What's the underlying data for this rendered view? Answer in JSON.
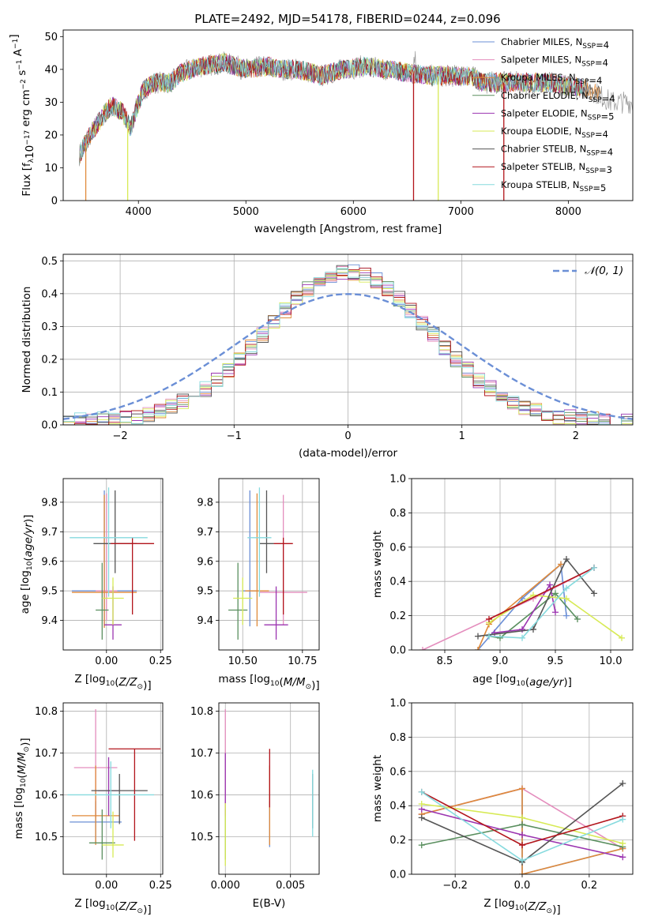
{
  "title": "PLATE=2492, MJD=54178, FIBERID=0244, z=0.096",
  "colors": {
    "chabrier_miles": "#6b8fd6",
    "salpeter_miles": "#e48dbd",
    "kroupa_miles": "#e08a3a",
    "chabrier_elodie": "#5a8f5f",
    "salpeter_elodie": "#9b34b0",
    "kroupa_elodie": "#d7ea55",
    "chabrier_stelib": "#555555",
    "salpeter_stelib": "#b2141b",
    "kroupa_stelib": "#86dade",
    "normal": "#6b8fd6"
  },
  "chart_data": [
    {
      "id": "spectrum",
      "type": "line",
      "title": "PLATE=2492, MJD=54178, FIBERID=0244, z=0.096",
      "xlabel": "wavelength [Angstrom, rest frame]",
      "ylabel": "Flux [f_λ 10^-17 erg cm^-2 s^-1 A^-1]",
      "xlim": [
        3300,
        8600
      ],
      "ylim": [
        0,
        52
      ],
      "xticks": [
        4000,
        5000,
        6000,
        7000,
        8000
      ],
      "yticks": [
        0,
        10,
        20,
        30,
        40,
        50
      ],
      "grid": false,
      "legend_placement": "top-right",
      "data_continuum": [
        [
          3450,
          14
        ],
        [
          3550,
          20
        ],
        [
          3650,
          25
        ],
        [
          3750,
          29
        ],
        [
          3850,
          27
        ],
        [
          3930,
          22
        ],
        [
          3970,
          27
        ],
        [
          4050,
          34
        ],
        [
          4150,
          36
        ],
        [
          4300,
          36
        ],
        [
          4400,
          39
        ],
        [
          4600,
          41
        ],
        [
          4800,
          42
        ],
        [
          5000,
          40
        ],
        [
          5200,
          41
        ],
        [
          5300,
          40
        ],
        [
          5500,
          40
        ],
        [
          5700,
          38
        ],
        [
          5900,
          40
        ],
        [
          6100,
          41
        ],
        [
          6300,
          40
        ],
        [
          6500,
          39
        ],
        [
          6700,
          38
        ],
        [
          6900,
          38
        ],
        [
          7100,
          38
        ],
        [
          7200,
          36
        ],
        [
          7400,
          36
        ],
        [
          7600,
          36
        ],
        [
          7800,
          36
        ],
        [
          8000,
          35
        ],
        [
          8200,
          34
        ],
        [
          8400,
          30
        ],
        [
          8600,
          30
        ]
      ],
      "series": [
        {
          "name": "Chabrier MILES, N_SSP=4"
        },
        {
          "name": "Salpeter MILES, N_SSP=4"
        },
        {
          "name": "Kroupa MILES, N_SSP=4"
        },
        {
          "name": "Chabrier ELODIE, N_SSP=4"
        },
        {
          "name": "Salpeter ELODIE, N_SSP=5"
        },
        {
          "name": "Kroupa ELODIE, N_SSP=4"
        },
        {
          "name": "Chabrier STELIB, N_SSP=4"
        },
        {
          "name": "Salpeter STELIB, N_SSP=3"
        },
        {
          "name": "Kroupa STELIB, N_SSP=5"
        }
      ],
      "drops": [
        {
          "series": 2,
          "x": 3510
        },
        {
          "series": 5,
          "x": 3900
        },
        {
          "series": 5,
          "x": 6790
        },
        {
          "series": 7,
          "x": 6560
        },
        {
          "series": 7,
          "x": 7400
        }
      ]
    },
    {
      "id": "residuals",
      "type": "line",
      "xlabel": "(data-model)/error",
      "ylabel": "Normed distribution",
      "xlim": [
        -2.5,
        2.5
      ],
      "ylim": [
        0,
        0.52
      ],
      "xticks": [
        -2,
        -1,
        0,
        1,
        2
      ],
      "yticks": [
        0.0,
        0.1,
        0.2,
        0.3,
        0.4,
        0.5
      ],
      "grid": true,
      "legend_placement": "top-right",
      "legend": "N(0,1)",
      "bin_width": 0.1
    },
    {
      "id": "age_vs_z",
      "type": "scatter",
      "xlabel": "Z [log10(Z/Z⊙)]",
      "ylabel": "age [log10(age/yr)]",
      "xlim": [
        -0.2,
        0.26
      ],
      "ylim": [
        9.3,
        9.88
      ],
      "xticks": [
        0.0,
        0.25
      ],
      "yticks": [
        9.4,
        9.5,
        9.6,
        9.7,
        9.8
      ],
      "grid": true,
      "points": [
        {
          "series": 0,
          "x": -0.01,
          "xerr": 0.15,
          "y": 9.5,
          "yerr": [
            0.12,
            0.34
          ]
        },
        {
          "series": 1,
          "x": 0.0,
          "xerr": 0.05,
          "y": 9.5,
          "yerr": [
            0.1,
            0.33
          ]
        },
        {
          "series": 2,
          "x": -0.01,
          "xerr": 0.15,
          "y": 9.495,
          "yerr": [
            0.12,
            0.33
          ]
        },
        {
          "series": 3,
          "x": -0.02,
          "xerr": 0.03,
          "y": 9.435,
          "yerr": [
            0.1,
            0.16
          ]
        },
        {
          "series": 4,
          "x": 0.03,
          "xerr": 0.04,
          "y": 9.385,
          "yerr": [
            0.05,
            0.13
          ]
        },
        {
          "series": 5,
          "x": 0.03,
          "xerr": 0.05,
          "y": 9.475,
          "yerr": [
            0.09,
            0.07
          ]
        },
        {
          "series": 6,
          "x": 0.04,
          "xerr": 0.1,
          "y": 9.66,
          "yerr": [
            0.1,
            0.18
          ]
        },
        {
          "series": 7,
          "x": 0.12,
          "xerr": 0.1,
          "y": 9.66,
          "yerr": [
            0.24,
            0.02
          ]
        },
        {
          "series": 8,
          "x": 0.01,
          "xerr": 0.18,
          "y": 9.68,
          "yerr": [
            0.2,
            0.17
          ]
        }
      ]
    },
    {
      "id": "age_vs_mass",
      "type": "scatter",
      "xlabel": "mass [log10(M/M⊙)]",
      "ylabel": "",
      "xlim": [
        10.4,
        10.82
      ],
      "ylim": [
        9.3,
        9.88
      ],
      "xticks": [
        10.5,
        10.75
      ],
      "yticks": [
        9.4,
        9.5,
        9.6,
        9.7,
        9.8
      ],
      "grid": true,
      "points": [
        {
          "series": 0,
          "x": 10.53,
          "xerr": 0.03,
          "y": 9.5,
          "yerr": [
            0.12,
            0.34
          ]
        },
        {
          "series": 1,
          "x": 10.67,
          "xerr": 0.1,
          "y": 9.495,
          "yerr": [
            0.11,
            0.33
          ]
        },
        {
          "series": 2,
          "x": 10.56,
          "xerr": 0.05,
          "y": 9.5,
          "yerr": [
            0.12,
            0.33
          ]
        },
        {
          "series": 3,
          "x": 10.48,
          "xerr": 0.04,
          "y": 9.435,
          "yerr": [
            0.1,
            0.16
          ]
        },
        {
          "series": 4,
          "x": 10.64,
          "xerr": 0.05,
          "y": 9.385,
          "yerr": [
            0.05,
            0.13
          ]
        },
        {
          "series": 5,
          "x": 10.5,
          "xerr": 0.04,
          "y": 9.475,
          "yerr": [
            0.09,
            0.07
          ]
        },
        {
          "series": 6,
          "x": 10.6,
          "xerr": 0.03,
          "y": 9.66,
          "yerr": [
            0.1,
            0.18
          ]
        },
        {
          "series": 7,
          "x": 10.67,
          "xerr": 0.04,
          "y": 9.66,
          "yerr": [
            0.24,
            0.02
          ]
        },
        {
          "series": 8,
          "x": 10.57,
          "xerr": 0.05,
          "y": 9.68,
          "yerr": [
            0.2,
            0.17
          ]
        }
      ]
    },
    {
      "id": "weights_vs_age",
      "type": "line",
      "xlabel": "age [log10(age/yr)]",
      "ylabel": "mass weight",
      "xlim": [
        8.2,
        10.2
      ],
      "ylim": [
        0,
        1
      ],
      "xticks": [
        8.5,
        9.0,
        9.5,
        10.0
      ],
      "yticks": [
        0.0,
        0.2,
        0.4,
        0.6,
        0.8,
        1.0
      ],
      "grid": true,
      "series": [
        {
          "series": 0,
          "points": [
            [
              8.8,
              0.0
            ],
            [
              9.2,
              0.3
            ],
            [
              9.55,
              0.5
            ],
            [
              9.6,
              0.2
            ]
          ]
        },
        {
          "series": 1,
          "points": [
            [
              8.3,
              0.0
            ],
            [
              9.3,
              0.3
            ],
            [
              9.85,
              0.48
            ]
          ]
        },
        {
          "series": 2,
          "points": [
            [
              8.8,
              0.0
            ],
            [
              8.9,
              0.15
            ],
            [
              9.55,
              0.5
            ]
          ]
        },
        {
          "series": 3,
          "points": [
            [
              8.9,
              0.08
            ],
            [
              9.0,
              0.07
            ],
            [
              9.5,
              0.33
            ],
            [
              9.7,
              0.18
            ]
          ]
        },
        {
          "series": 4,
          "points": [
            [
              8.95,
              0.1
            ],
            [
              9.2,
              0.12
            ],
            [
              9.45,
              0.38
            ],
            [
              9.5,
              0.22
            ]
          ]
        },
        {
          "series": 5,
          "points": [
            [
              8.9,
              0.16
            ],
            [
              9.3,
              0.32
            ],
            [
              9.6,
              0.3
            ],
            [
              10.1,
              0.07
            ]
          ]
        },
        {
          "series": 6,
          "points": [
            [
              8.8,
              0.08
            ],
            [
              9.3,
              0.12
            ],
            [
              9.6,
              0.53
            ],
            [
              9.85,
              0.33
            ]
          ]
        },
        {
          "series": 7,
          "points": [
            [
              8.9,
              0.18
            ],
            [
              9.85,
              0.48
            ]
          ]
        },
        {
          "series": 8,
          "points": [
            [
              8.9,
              0.08
            ],
            [
              9.2,
              0.07
            ],
            [
              9.6,
              0.36
            ],
            [
              9.85,
              0.48
            ]
          ]
        }
      ]
    },
    {
      "id": "mass_vs_z",
      "type": "scatter",
      "xlabel": "Z [log10(Z/Z⊙)]",
      "ylabel": "mass [log10(M/M⊙)]",
      "xlim": [
        -0.2,
        0.26
      ],
      "ylim": [
        10.41,
        10.82
      ],
      "xticks": [
        0.0,
        0.25
      ],
      "yticks": [
        10.5,
        10.6,
        10.7,
        10.8
      ],
      "grid": true,
      "points": [
        {
          "series": 0,
          "x": -0.05,
          "xerr": 0.12,
          "y": 10.535,
          "yerr": [
            0.05,
            0.05
          ]
        },
        {
          "series": 1,
          "x": -0.05,
          "xerr": 0.1,
          "y": 10.665,
          "yerr": [
            0.12,
            0.14
          ]
        },
        {
          "series": 2,
          "x": -0.05,
          "xerr": 0.11,
          "y": 10.55,
          "yerr": [
            0.07,
            0.12
          ]
        },
        {
          "series": 3,
          "x": -0.02,
          "xerr": 0.06,
          "y": 10.485,
          "yerr": [
            0.04,
            0.08
          ]
        },
        {
          "series": 4,
          "x": 0.01,
          "xerr": 0.05,
          "y": 10.61,
          "yerr": [
            0.06,
            0.08
          ]
        },
        {
          "series": 5,
          "x": 0.03,
          "xerr": 0.05,
          "y": 10.48,
          "yerr": [
            0.03,
            0.08
          ]
        },
        {
          "series": 6,
          "x": 0.06,
          "xerr": 0.13,
          "y": 10.61,
          "yerr": [
            0.08,
            0.04
          ]
        },
        {
          "series": 7,
          "x": 0.13,
          "xerr": 0.12,
          "y": 10.71,
          "yerr": [
            0.22,
            0.0
          ]
        },
        {
          "series": 8,
          "x": 0.02,
          "xerr": 0.2,
          "y": 10.6,
          "yerr": [
            0.08,
            0.08
          ]
        }
      ]
    },
    {
      "id": "mass_vs_ebv",
      "type": "scatter",
      "xlabel": "E(B-V)",
      "ylabel": "",
      "xlim": [
        -0.0005,
        0.0072
      ],
      "ylim": [
        10.41,
        10.82
      ],
      "xticks": [
        0.0,
        0.005
      ],
      "xticklabels": [
        "0.000",
        "0.005"
      ],
      "yticks": [
        10.5,
        10.6,
        10.7,
        10.8
      ],
      "grid": true,
      "points": [
        {
          "series": 0,
          "x": 0.0034,
          "y": 10.535,
          "yerr": [
            0.06,
            0.05
          ]
        },
        {
          "series": 1,
          "x": 0.0,
          "y": 10.665,
          "yerr": [
            0.12,
            0.14
          ]
        },
        {
          "series": 2,
          "x": 0.0034,
          "y": 10.55,
          "yerr": [
            0.07,
            0.12
          ]
        },
        {
          "series": 3,
          "x": 0.0,
          "y": 10.485,
          "yerr": [
            0.04,
            0.08
          ]
        },
        {
          "series": 4,
          "x": 0.0,
          "y": 10.61,
          "yerr": [
            0.06,
            0.09
          ]
        },
        {
          "series": 5,
          "x": 0.0,
          "y": 10.48,
          "yerr": [
            0.05,
            0.1
          ]
        },
        {
          "series": 6,
          "x": 0.0067,
          "y": 10.61,
          "yerr": [
            0.09,
            0.04
          ]
        },
        {
          "series": 7,
          "x": 0.0034,
          "y": 10.64,
          "yerr": [
            0.07,
            0.07
          ]
        },
        {
          "series": 8,
          "x": 0.0067,
          "y": 10.58,
          "yerr": [
            0.08,
            0.08
          ]
        }
      ]
    },
    {
      "id": "weights_vs_z",
      "type": "line",
      "xlabel": "Z [log10(Z/Z⊙)]",
      "ylabel": "mass weight",
      "xlim": [
        -0.33,
        0.33
      ],
      "ylim": [
        0,
        1
      ],
      "xticks": [
        -0.2,
        0.0,
        0.2
      ],
      "yticks": [
        0.0,
        0.2,
        0.4,
        0.6,
        0.8,
        1.0
      ],
      "grid": true,
      "series": [
        {
          "series": 0,
          "points": [
            [
              -0.3,
              0.35
            ],
            [
              0.0,
              0.5
            ],
            [
              0.0,
              0.0
            ],
            [
              0.3,
              0.15
            ]
          ]
        },
        {
          "series": 1,
          "points": [
            [
              -0.3,
              0.35
            ],
            [
              0.0,
              0.5
            ],
            [
              0.3,
              0.15
            ]
          ]
        },
        {
          "series": 2,
          "points": [
            [
              -0.3,
              0.35
            ],
            [
              0.0,
              0.5
            ],
            [
              0.0,
              0.0
            ],
            [
              0.3,
              0.15
            ]
          ]
        },
        {
          "series": 3,
          "points": [
            [
              -0.3,
              0.17
            ],
            [
              0.0,
              0.29
            ],
            [
              0.3,
              0.16
            ]
          ]
        },
        {
          "series": 4,
          "points": [
            [
              -0.3,
              0.38
            ],
            [
              0.0,
              0.23
            ],
            [
              0.3,
              0.1
            ]
          ]
        },
        {
          "series": 5,
          "points": [
            [
              -0.3,
              0.41
            ],
            [
              0.0,
              0.33
            ],
            [
              0.3,
              0.18
            ]
          ]
        },
        {
          "series": 6,
          "points": [
            [
              -0.3,
              0.33
            ],
            [
              0.0,
              0.07
            ],
            [
              0.3,
              0.53
            ]
          ]
        },
        {
          "series": 7,
          "points": [
            [
              -0.3,
              0.48
            ],
            [
              0.0,
              0.17
            ],
            [
              0.3,
              0.34
            ]
          ]
        },
        {
          "series": 8,
          "points": [
            [
              -0.3,
              0.48
            ],
            [
              0.0,
              0.08
            ],
            [
              0.3,
              0.32
            ]
          ]
        }
      ]
    }
  ]
}
